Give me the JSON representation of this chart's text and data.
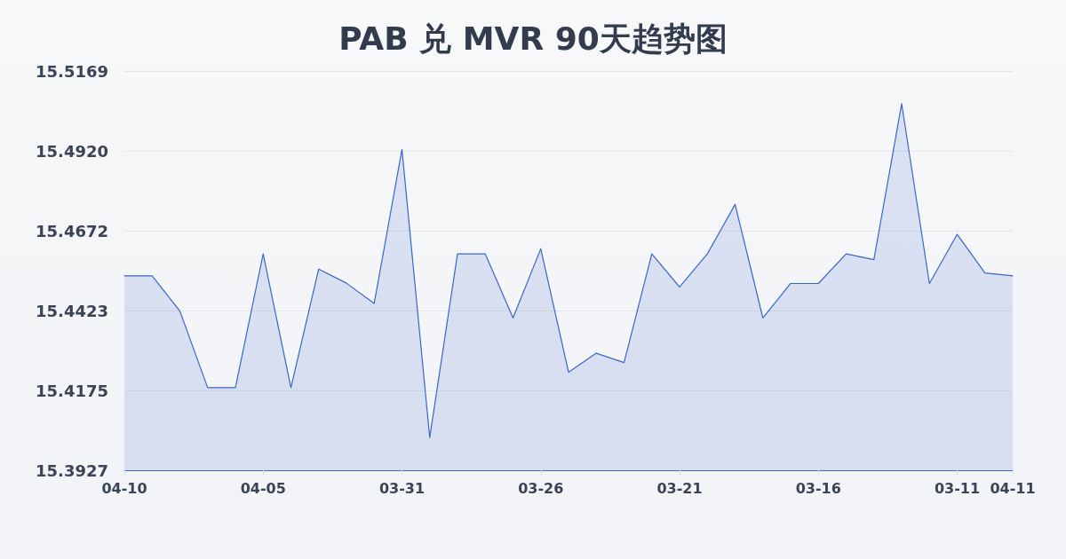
{
  "chart_data": {
    "type": "area",
    "title": "PAB 兑 MVR 90天趋势图",
    "categories": [
      "04-10",
      null,
      null,
      null,
      null,
      "04-05",
      null,
      null,
      null,
      null,
      "03-31",
      null,
      null,
      null,
      null,
      "03-26",
      null,
      null,
      null,
      null,
      "03-21",
      null,
      null,
      null,
      null,
      "03-16",
      null,
      null,
      null,
      null,
      "03-11",
      null,
      "04-11"
    ],
    "values": [
      15.4532,
      15.4532,
      15.4422,
      15.4184,
      15.4184,
      15.46,
      15.4184,
      15.4553,
      15.4509,
      15.4446,
      15.4925,
      15.4029,
      15.46,
      15.46,
      15.4401,
      15.4616,
      15.4232,
      15.4291,
      15.4262,
      15.46,
      15.4497,
      15.46,
      15.4754,
      15.4401,
      15.4508,
      15.4508,
      15.46,
      15.4582,
      15.5067,
      15.4508,
      15.4661,
      15.4541,
      15.4532
    ],
    "color": "#3a66c8",
    "ylim": [
      15.3927,
      15.5169
    ],
    "yticks": [
      15.3927,
      15.4175,
      15.4423,
      15.4672,
      {
        "value": 15.492,
        "label": "15.4920"
      },
      15.5169
    ],
    "grid": "y",
    "marker": "none",
    "line_style": "solid"
  }
}
